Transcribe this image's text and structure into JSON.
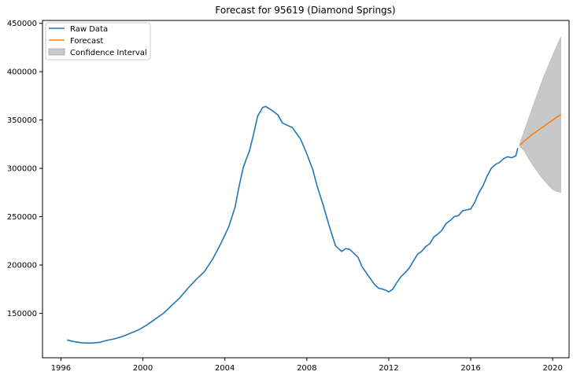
{
  "chart_data": {
    "type": "line",
    "title": "Forecast for 95619 (Diamond Springs)",
    "xlabel": "",
    "ylabel": "",
    "xlim": [
      1995.1,
      2020.8
    ],
    "ylim": [
      104000,
      453000
    ],
    "x_ticks": [
      1996,
      2000,
      2004,
      2008,
      2012,
      2016,
      2020
    ],
    "y_ticks": [
      150000,
      200000,
      250000,
      300000,
      350000,
      400000,
      450000
    ],
    "grid": false,
    "legend": {
      "location": "upper-left",
      "entries": [
        {
          "label": "Raw Data",
          "color": "#1f77b4",
          "kind": "line"
        },
        {
          "label": "Forecast",
          "color": "#ff7f0e",
          "kind": "line"
        },
        {
          "label": "Confidence Interval",
          "color": "#c8c8c8",
          "kind": "patch"
        }
      ]
    },
    "series": [
      {
        "name": "Raw Data",
        "color": "#1f77b4",
        "points": [
          [
            1996.3,
            122500
          ],
          [
            1996.6,
            120800
          ],
          [
            1997.0,
            119500
          ],
          [
            1997.5,
            119200
          ],
          [
            1997.9,
            120000
          ],
          [
            1998.2,
            121800
          ],
          [
            1998.6,
            123500
          ],
          [
            1999.0,
            126000
          ],
          [
            1999.4,
            129500
          ],
          [
            1999.8,
            133000
          ],
          [
            2000.2,
            138000
          ],
          [
            2000.6,
            144000
          ],
          [
            2001.0,
            150000
          ],
          [
            2001.4,
            158000
          ],
          [
            2001.8,
            166000
          ],
          [
            2002.2,
            176000
          ],
          [
            2002.6,
            185000
          ],
          [
            2003.0,
            193000
          ],
          [
            2003.4,
            206000
          ],
          [
            2003.8,
            222000
          ],
          [
            2004.2,
            240000
          ],
          [
            2004.5,
            260000
          ],
          [
            2004.7,
            282000
          ],
          [
            2004.9,
            301000
          ],
          [
            2005.2,
            318000
          ],
          [
            2005.4,
            335000
          ],
          [
            2005.6,
            354000
          ],
          [
            2005.85,
            363000
          ],
          [
            2006.0,
            364000
          ],
          [
            2006.3,
            360000
          ],
          [
            2006.6,
            355000
          ],
          [
            2006.8,
            347000
          ],
          [
            2007.0,
            345000
          ],
          [
            2007.3,
            342000
          ],
          [
            2007.7,
            330000
          ],
          [
            2008.0,
            315000
          ],
          [
            2008.3,
            298000
          ],
          [
            2008.5,
            282000
          ],
          [
            2008.8,
            262000
          ],
          [
            2009.1,
            240000
          ],
          [
            2009.4,
            220000
          ],
          [
            2009.7,
            214000
          ],
          [
            2009.9,
            217000
          ],
          [
            2010.1,
            216000
          ],
          [
            2010.3,
            212000
          ],
          [
            2010.5,
            208000
          ],
          [
            2010.7,
            198000
          ],
          [
            2010.9,
            192000
          ],
          [
            2011.1,
            186000
          ],
          [
            2011.3,
            180000
          ],
          [
            2011.5,
            176000
          ],
          [
            2011.7,
            175000
          ],
          [
            2011.9,
            173500
          ],
          [
            2012.0,
            172000
          ],
          [
            2012.2,
            175000
          ],
          [
            2012.4,
            182000
          ],
          [
            2012.6,
            188000
          ],
          [
            2012.8,
            192000
          ],
          [
            2013.0,
            197000
          ],
          [
            2013.2,
            204000
          ],
          [
            2013.4,
            211000
          ],
          [
            2013.6,
            214000
          ],
          [
            2013.8,
            219000
          ],
          [
            2014.0,
            222000
          ],
          [
            2014.2,
            229000
          ],
          [
            2014.4,
            232000
          ],
          [
            2014.6,
            236000
          ],
          [
            2014.8,
            243000
          ],
          [
            2015.0,
            246000
          ],
          [
            2015.2,
            250000
          ],
          [
            2015.4,
            251000
          ],
          [
            2015.6,
            256000
          ],
          [
            2015.8,
            257000
          ],
          [
            2016.0,
            258000
          ],
          [
            2016.2,
            265000
          ],
          [
            2016.4,
            275000
          ],
          [
            2016.6,
            282000
          ],
          [
            2016.8,
            292000
          ],
          [
            2017.0,
            300000
          ],
          [
            2017.2,
            304000
          ],
          [
            2017.4,
            306000
          ],
          [
            2017.6,
            310000
          ],
          [
            2017.8,
            312000
          ],
          [
            2018.0,
            311000
          ],
          [
            2018.2,
            313000
          ],
          [
            2018.3,
            321000
          ]
        ]
      },
      {
        "name": "Forecast",
        "color": "#ff7f0e",
        "points": [
          [
            2018.4,
            324000
          ],
          [
            2018.6,
            328000
          ],
          [
            2018.8,
            331500
          ],
          [
            2019.0,
            335000
          ],
          [
            2019.2,
            338000
          ],
          [
            2019.4,
            341000
          ],
          [
            2019.6,
            344000
          ],
          [
            2019.8,
            347000
          ],
          [
            2020.0,
            350000
          ],
          [
            2020.2,
            353000
          ],
          [
            2020.4,
            355500
          ]
        ]
      }
    ],
    "confidence_interval": {
      "name": "Confidence Interval",
      "color": "#c8c8c8",
      "x": [
        2018.4,
        2018.6,
        2018.8,
        2019.0,
        2019.2,
        2019.4,
        2019.6,
        2019.8,
        2020.0,
        2020.2,
        2020.4
      ],
      "upper": [
        326000,
        338000,
        350000,
        362000,
        374000,
        386000,
        397000,
        407000,
        417000,
        427000,
        436000
      ],
      "lower": [
        322000,
        318000,
        311000,
        304000,
        298000,
        292000,
        287000,
        282000,
        278000,
        276000,
        275000
      ]
    }
  }
}
